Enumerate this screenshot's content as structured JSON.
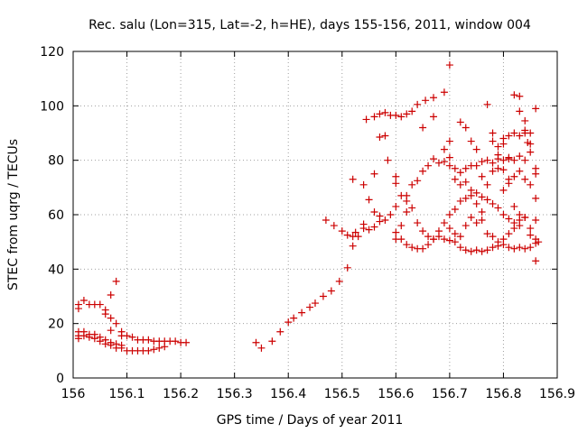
{
  "chart_data": {
    "type": "scatter",
    "title": "Rec. salu (Lon=315, Lat=-2, h=HE), days 155-156, 2011, window 004",
    "xlabel": "GPS time / Days of year 2011",
    "ylabel": "STEC from uqrg / TECUs",
    "xlim": [
      156,
      156.9
    ],
    "ylim": [
      0,
      120
    ],
    "xticks": [
      "156",
      "156.1",
      "156.2",
      "156.3",
      "156.4",
      "156.5",
      "156.6",
      "156.7",
      "156.8",
      "156.9"
    ],
    "yticks": [
      "0",
      "20",
      "40",
      "60",
      "80",
      "100",
      "120"
    ],
    "grid": true,
    "marker": "plus",
    "color": "#cc0000",
    "series": [
      {
        "points": [
          [
            156.01,
            25.5
          ],
          [
            156.01,
            27
          ],
          [
            156.02,
            28.5
          ],
          [
            156.03,
            27
          ],
          [
            156.04,
            27
          ],
          [
            156.05,
            27
          ],
          [
            156.06,
            25
          ],
          [
            156.07,
            30.5
          ],
          [
            156.08,
            35.5
          ],
          [
            156.01,
            17
          ],
          [
            156.01,
            15.5
          ],
          [
            156.01,
            14.5
          ],
          [
            156.02,
            17
          ],
          [
            156.02,
            15.5
          ],
          [
            156.03,
            16
          ],
          [
            156.03,
            15
          ],
          [
            156.04,
            16
          ],
          [
            156.04,
            14.5
          ],
          [
            156.05,
            15
          ],
          [
            156.05,
            13.5
          ],
          [
            156.06,
            14
          ],
          [
            156.06,
            12.5
          ],
          [
            156.07,
            13
          ],
          [
            156.07,
            12
          ],
          [
            156.08,
            12.5
          ],
          [
            156.08,
            11
          ],
          [
            156.09,
            12
          ],
          [
            156.06,
            23.5
          ],
          [
            156.07,
            22
          ],
          [
            156.08,
            20
          ],
          [
            156.07,
            17.5
          ],
          [
            156.09,
            17
          ],
          [
            156.09,
            15.5
          ],
          [
            156.1,
            15.5
          ],
          [
            156.11,
            15
          ],
          [
            156.12,
            14
          ],
          [
            156.13,
            14
          ],
          [
            156.14,
            14
          ],
          [
            156.15,
            13.5
          ],
          [
            156.16,
            13.5
          ],
          [
            156.17,
            13.5
          ],
          [
            156.18,
            13.5
          ],
          [
            156.19,
            13.5
          ],
          [
            156.2,
            13
          ],
          [
            156.21,
            13
          ],
          [
            156.09,
            11
          ],
          [
            156.1,
            10
          ],
          [
            156.11,
            10
          ],
          [
            156.12,
            10
          ],
          [
            156.13,
            10
          ],
          [
            156.14,
            10
          ],
          [
            156.15,
            10.5
          ],
          [
            156.16,
            11
          ],
          [
            156.17,
            11.5
          ],
          [
            156.34,
            13
          ],
          [
            156.35,
            11
          ],
          [
            156.37,
            13.5
          ],
          [
            156.385,
            17
          ],
          [
            156.4,
            20.5
          ],
          [
            156.41,
            22
          ],
          [
            156.425,
            24
          ],
          [
            156.44,
            26
          ],
          [
            156.45,
            27.5
          ],
          [
            156.465,
            30
          ],
          [
            156.48,
            32
          ],
          [
            156.495,
            35.5
          ],
          [
            156.51,
            40.5
          ],
          [
            156.52,
            48.5
          ],
          [
            156.53,
            52
          ],
          [
            156.54,
            55
          ],
          [
            156.47,
            58
          ],
          [
            156.485,
            56
          ],
          [
            156.5,
            54
          ],
          [
            156.51,
            52.5
          ],
          [
            156.52,
            52
          ],
          [
            156.525,
            53.5
          ],
          [
            156.54,
            56.5
          ],
          [
            156.55,
            54.5
          ],
          [
            156.56,
            55.5
          ],
          [
            156.57,
            57.5
          ],
          [
            156.58,
            58
          ],
          [
            156.59,
            60
          ],
          [
            156.6,
            63
          ],
          [
            156.52,
            73
          ],
          [
            156.54,
            71
          ],
          [
            156.55,
            65.5
          ],
          [
            156.56,
            61
          ],
          [
            156.57,
            59.5
          ],
          [
            156.6,
            53.5
          ],
          [
            156.61,
            51
          ],
          [
            156.62,
            49
          ],
          [
            156.63,
            48
          ],
          [
            156.64,
            47.5
          ],
          [
            156.65,
            47.5
          ],
          [
            156.66,
            49
          ],
          [
            156.67,
            51
          ],
          [
            156.68,
            52
          ],
          [
            156.69,
            51
          ],
          [
            156.7,
            50.5
          ],
          [
            156.71,
            50
          ],
          [
            156.72,
            48
          ],
          [
            156.73,
            47
          ],
          [
            156.74,
            46.5
          ],
          [
            156.75,
            47
          ],
          [
            156.76,
            46.5
          ],
          [
            156.77,
            47
          ],
          [
            156.78,
            48
          ],
          [
            156.79,
            48.5
          ],
          [
            156.8,
            49
          ],
          [
            156.81,
            48
          ],
          [
            156.82,
            47.5
          ],
          [
            156.83,
            48
          ],
          [
            156.84,
            47.5
          ],
          [
            156.85,
            48
          ],
          [
            156.86,
            49.5
          ],
          [
            156.545,
            95
          ],
          [
            156.56,
            96
          ],
          [
            156.57,
            97
          ],
          [
            156.58,
            97.5
          ],
          [
            156.59,
            96.5
          ],
          [
            156.6,
            96.5
          ],
          [
            156.61,
            96
          ],
          [
            156.62,
            97
          ],
          [
            156.63,
            98
          ],
          [
            156.64,
            100.5
          ],
          [
            156.655,
            102
          ],
          [
            156.67,
            103
          ],
          [
            156.69,
            105
          ],
          [
            156.7,
            115
          ],
          [
            156.56,
            75
          ],
          [
            156.57,
            88.5
          ],
          [
            156.585,
            80
          ],
          [
            156.6,
            71.5
          ],
          [
            156.61,
            67
          ],
          [
            156.62,
            65
          ],
          [
            156.63,
            71
          ],
          [
            156.64,
            72.5
          ],
          [
            156.65,
            76
          ],
          [
            156.66,
            78
          ],
          [
            156.67,
            80.5
          ],
          [
            156.68,
            79
          ],
          [
            156.69,
            79.5
          ],
          [
            156.7,
            81
          ],
          [
            156.71,
            77
          ],
          [
            156.72,
            75.5
          ],
          [
            156.73,
            77
          ],
          [
            156.74,
            78
          ],
          [
            156.75,
            78
          ],
          [
            156.76,
            79.5
          ],
          [
            156.77,
            80
          ],
          [
            156.78,
            79
          ],
          [
            156.79,
            80.5
          ],
          [
            156.8,
            80
          ],
          [
            156.81,
            80.5
          ],
          [
            156.82,
            80
          ],
          [
            156.83,
            81.5
          ],
          [
            156.84,
            80
          ],
          [
            156.6,
            51
          ],
          [
            156.61,
            56
          ],
          [
            156.62,
            61
          ],
          [
            156.63,
            62.5
          ],
          [
            156.64,
            57
          ],
          [
            156.65,
            54
          ],
          [
            156.66,
            52
          ],
          [
            156.67,
            51
          ],
          [
            156.68,
            54
          ],
          [
            156.69,
            57
          ],
          [
            156.7,
            60
          ],
          [
            156.71,
            62
          ],
          [
            156.72,
            65
          ],
          [
            156.73,
            66
          ],
          [
            156.74,
            67
          ],
          [
            156.75,
            68
          ],
          [
            156.76,
            66.5
          ],
          [
            156.77,
            65.5
          ],
          [
            156.78,
            64
          ],
          [
            156.79,
            62.5
          ],
          [
            156.8,
            60
          ],
          [
            156.81,
            58.5
          ],
          [
            156.82,
            57
          ],
          [
            156.83,
            56
          ],
          [
            156.58,
            89
          ],
          [
            156.6,
            74
          ],
          [
            156.62,
            67
          ],
          [
            156.65,
            92
          ],
          [
            156.67,
            96
          ],
          [
            156.69,
            84
          ],
          [
            156.7,
            87
          ],
          [
            156.71,
            73
          ],
          [
            156.72,
            94
          ],
          [
            156.73,
            92
          ],
          [
            156.74,
            87
          ],
          [
            156.75,
            84
          ],
          [
            156.76,
            74
          ],
          [
            156.77,
            100.5
          ],
          [
            156.78,
            90
          ],
          [
            156.79,
            85
          ],
          [
            156.8,
            88
          ],
          [
            156.81,
            89
          ],
          [
            156.82,
            104
          ],
          [
            156.83,
            103.5
          ],
          [
            156.84,
            94.5
          ],
          [
            156.85,
            86
          ],
          [
            156.86,
            99
          ],
          [
            156.7,
            78
          ],
          [
            156.72,
            71
          ],
          [
            156.73,
            72
          ],
          [
            156.74,
            69
          ],
          [
            156.75,
            64
          ],
          [
            156.76,
            61
          ],
          [
            156.77,
            71
          ],
          [
            156.78,
            76
          ],
          [
            156.79,
            77
          ],
          [
            156.8,
            69
          ],
          [
            156.81,
            71.5
          ],
          [
            156.82,
            74
          ],
          [
            156.83,
            76
          ],
          [
            156.84,
            73
          ],
          [
            156.85,
            71
          ],
          [
            156.86,
            66
          ],
          [
            156.7,
            55
          ],
          [
            156.71,
            53
          ],
          [
            156.72,
            52
          ],
          [
            156.73,
            56
          ],
          [
            156.74,
            59
          ],
          [
            156.75,
            57
          ],
          [
            156.76,
            58
          ],
          [
            156.77,
            53
          ],
          [
            156.78,
            52
          ],
          [
            156.79,
            50
          ],
          [
            156.8,
            51
          ],
          [
            156.81,
            53
          ],
          [
            156.82,
            55
          ],
          [
            156.83,
            58
          ],
          [
            156.84,
            59
          ],
          [
            156.85,
            55
          ],
          [
            156.86,
            51
          ],
          [
            156.83,
            98
          ],
          [
            156.84,
            90
          ],
          [
            156.845,
            86.5
          ],
          [
            156.85,
            83
          ],
          [
            156.86,
            77
          ],
          [
            156.86,
            75
          ],
          [
            156.86,
            58
          ],
          [
            156.865,
            50
          ],
          [
            156.86,
            43
          ],
          [
            156.78,
            87
          ],
          [
            156.79,
            82
          ],
          [
            156.8,
            76.5
          ],
          [
            156.81,
            73
          ],
          [
            156.82,
            63
          ],
          [
            156.83,
            60
          ],
          [
            156.84,
            59
          ],
          [
            156.85,
            52.5
          ],
          [
            156.8,
            86
          ],
          [
            156.81,
            81
          ],
          [
            156.82,
            90
          ],
          [
            156.83,
            89
          ],
          [
            156.84,
            91
          ],
          [
            156.85,
            90
          ]
        ]
      }
    ]
  }
}
